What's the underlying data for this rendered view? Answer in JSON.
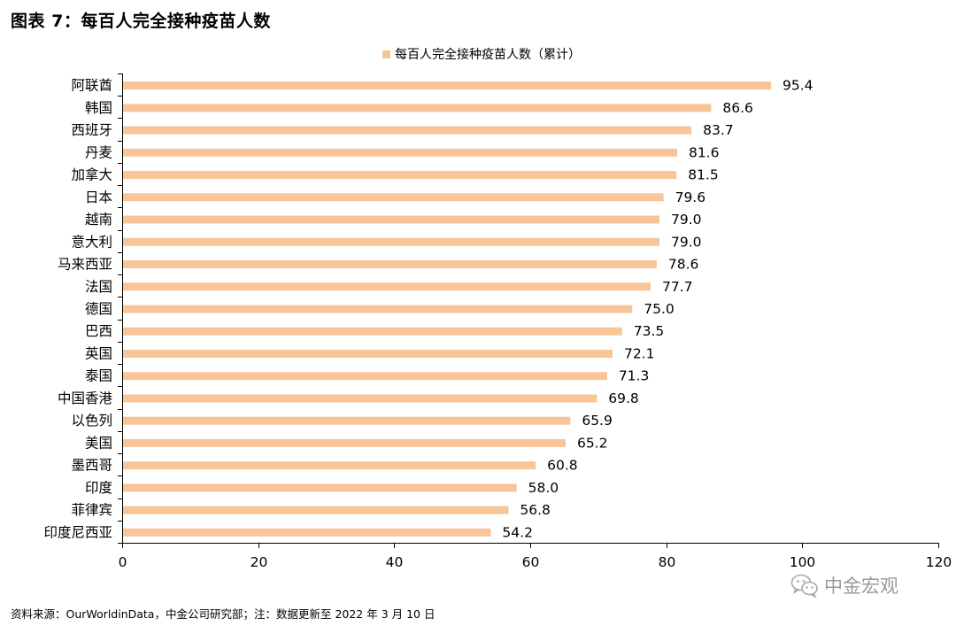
{
  "figure_title": "图表 7：每百人完全接种疫苗人数",
  "source_note": "资料来源：OurWorldinData，中金公司研究部；注：数据更新至 2022 年 3 月 10 日",
  "watermark": {
    "icon": "wechat-icon",
    "text": "中金宏观"
  },
  "colors": {
    "bar": "#F8C598",
    "axis": "#000000"
  },
  "chart_data": {
    "type": "bar",
    "orientation": "horizontal",
    "title": "",
    "legend": {
      "position": "top-center",
      "entries": [
        "每百人完全接种疫苗人数（累计）"
      ]
    },
    "categories": [
      "阿联酋",
      "韩国",
      "西班牙",
      "丹麦",
      "加拿大",
      "日本",
      "越南",
      "意大利",
      "马来西亚",
      "法国",
      "德国",
      "巴西",
      "英国",
      "泰国",
      "中国香港",
      "以色列",
      "美国",
      "墨西哥",
      "印度",
      "菲律宾",
      "印度尼西亚"
    ],
    "series": [
      {
        "name": "每百人完全接种疫苗人数（累计）",
        "values": [
          95.4,
          86.6,
          83.7,
          81.6,
          81.5,
          79.6,
          79.0,
          79.0,
          78.6,
          77.7,
          75.0,
          73.5,
          72.1,
          71.3,
          69.8,
          65.9,
          65.2,
          60.8,
          58.0,
          56.8,
          54.2
        ]
      }
    ],
    "value_labels": [
      "95.4",
      "86.6",
      "83.7",
      "81.6",
      "81.5",
      "79.6",
      "79.0",
      "79.0",
      "78.6",
      "77.7",
      "75.0",
      "73.5",
      "72.1",
      "71.3",
      "69.8",
      "65.9",
      "65.2",
      "60.8",
      "58.0",
      "56.8",
      "54.2"
    ],
    "xlabel": "",
    "ylabel": "",
    "xlim": [
      0,
      120
    ],
    "xticks": [
      0,
      20,
      40,
      60,
      80,
      100,
      120
    ],
    "xtick_labels": [
      "0",
      "20",
      "40",
      "60",
      "80",
      "100",
      "120"
    ],
    "grid": false
  }
}
